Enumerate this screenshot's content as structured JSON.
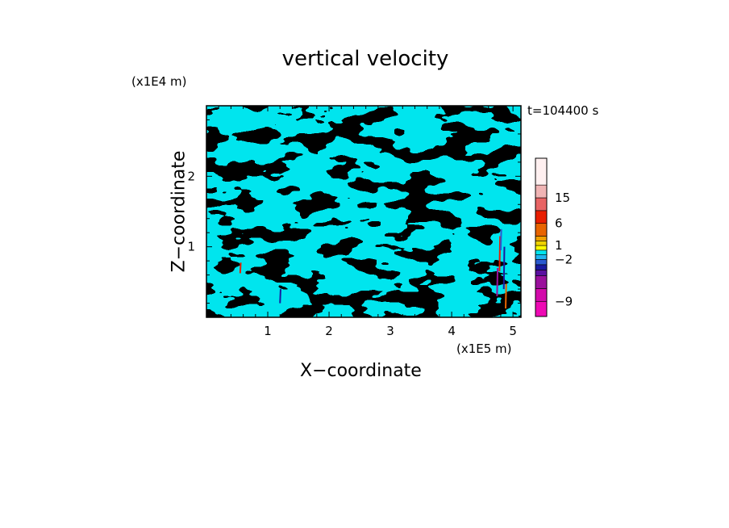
{
  "chart_data": {
    "type": "heatmap",
    "title": "vertical velocity",
    "xlabel": "X−coordinate",
    "ylabel": "Z−coordinate",
    "x_unit": "(x1E5 m)",
    "z_unit": "(x1E4 m)",
    "time_label": "t=104400 s",
    "xlim": [
      0,
      5.13
    ],
    "ylim": [
      0,
      3.0
    ],
    "x_ticks": [
      {
        "value": 1,
        "label": "1"
      },
      {
        "value": 2,
        "label": "2"
      },
      {
        "value": 3,
        "label": "3"
      },
      {
        "value": 4,
        "label": "4"
      },
      {
        "value": 5,
        "label": "5"
      }
    ],
    "y_ticks": [
      {
        "value": 1,
        "label": "1"
      },
      {
        "value": 2,
        "label": "2"
      }
    ],
    "field_colors": {
      "positive": "#ffff00",
      "negative": "#00e5ee"
    },
    "colorbar": {
      "levels": [
        {
          "color": "#ee0ab4"
        },
        {
          "color": "#d20aaa"
        },
        {
          "color": "#9a109c"
        },
        {
          "color": "#5a10a0"
        },
        {
          "color": "#1a1aa0"
        },
        {
          "color": "#2a5ad0"
        },
        {
          "color": "#20b4f0"
        },
        {
          "color": "#00e5ee"
        },
        {
          "color": "#ffff00"
        },
        {
          "color": "#f0d200"
        },
        {
          "color": "#f0a000"
        },
        {
          "color": "#e86400"
        },
        {
          "color": "#e81e00"
        },
        {
          "color": "#e86464"
        },
        {
          "color": "#f0b4b4"
        },
        {
          "color": "#fff0f0"
        }
      ],
      "labels": [
        {
          "value": -9,
          "label": "−9"
        },
        {
          "value": -2,
          "label": "−2"
        },
        {
          "value": 1,
          "label": "1"
        },
        {
          "value": 6,
          "label": "6"
        },
        {
          "value": 15,
          "label": "15"
        }
      ]
    }
  }
}
